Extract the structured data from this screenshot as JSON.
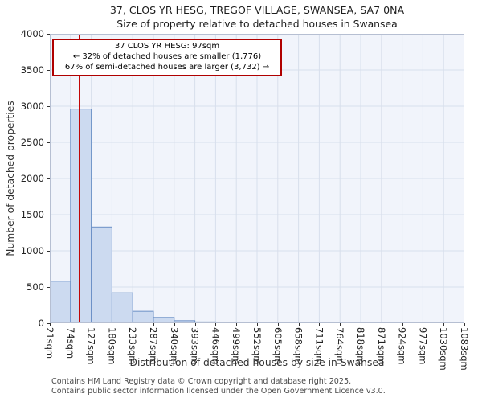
{
  "title": {
    "line1": "37, CLOS YR HESG, TREGOF VILLAGE, SWANSEA, SA7 0NA",
    "line2": "Size of property relative to detached houses in Swansea"
  },
  "chart_data": {
    "type": "bar",
    "title": "37, CLOS YR HESG, TREGOF VILLAGE, SWANSEA, SA7 0NA — Size of property relative to detached houses in Swansea",
    "xlabel": "Distribution of detached houses by size in Swansea",
    "ylabel": "Number of detached properties",
    "categories": [
      "21sqm",
      "74sqm",
      "127sqm",
      "180sqm",
      "233sqm",
      "287sqm",
      "340sqm",
      "393sqm",
      "446sqm",
      "499sqm",
      "552sqm",
      "605sqm",
      "658sqm",
      "711sqm",
      "764sqm",
      "818sqm",
      "871sqm",
      "924sqm",
      "977sqm",
      "1030sqm",
      "1083sqm"
    ],
    "bin_edges_sqm": [
      21,
      74,
      127,
      180,
      233,
      287,
      340,
      393,
      446,
      499,
      552,
      605,
      658,
      711,
      764,
      818,
      871,
      924,
      977,
      1030,
      1083
    ],
    "values": [
      580,
      2960,
      1330,
      420,
      165,
      80,
      35,
      18,
      10,
      5,
      2,
      1,
      1,
      1,
      0,
      0,
      0,
      0,
      0,
      0
    ],
    "ylim": [
      0,
      4000
    ],
    "yticks": [
      0,
      500,
      1000,
      1500,
      2000,
      2500,
      3000,
      3500,
      4000
    ],
    "grid": true,
    "legend": "none",
    "marker_sqm": 97,
    "annotation": {
      "line1": "37 CLOS YR HESG: 97sqm",
      "line2": "← 32% of detached houses are smaller (1,776)",
      "line3": "67% of semi-detached houses are larger (3,732) →"
    },
    "colors": {
      "bar_fill": "#ccdaf0",
      "bar_border": "#6b90c6",
      "marker_line": "#c00000",
      "annotation_border": "#b00000",
      "grid": "#d8dfec",
      "plot_bg": "#f1f4fb",
      "frame": "#b6bfd2"
    }
  },
  "footer": {
    "line1": "Contains HM Land Registry data © Crown copyright and database right 2025.",
    "line2": "Contains public sector information licensed under the Open Government Licence v3.0."
  }
}
